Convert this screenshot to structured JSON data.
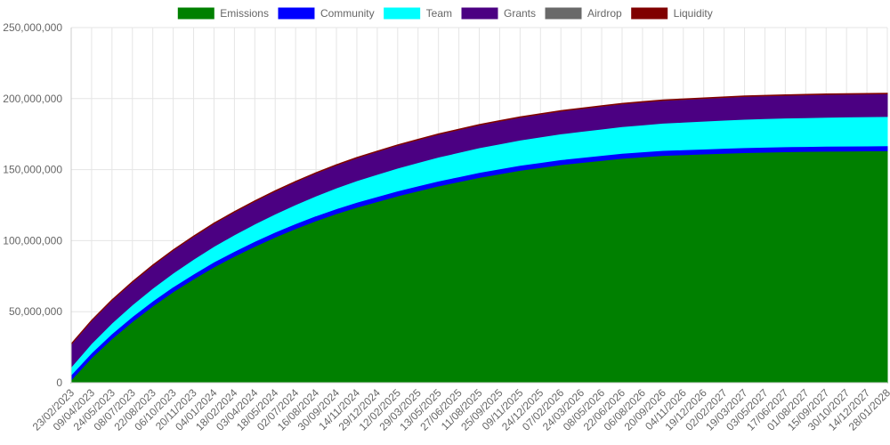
{
  "chart_data": {
    "type": "area",
    "stacked": true,
    "legend_position": "top",
    "grid": true,
    "ylim": [
      0,
      250000000
    ],
    "y_ticks": [
      0,
      50000000,
      100000000,
      150000000,
      200000000,
      250000000
    ],
    "y_tick_labels": [
      "0",
      "50,000,000",
      "100,000,000",
      "150,000,000",
      "200,000,000",
      "250,000,000"
    ],
    "x_labels": [
      "23/02/2023",
      "09/04/2023",
      "24/05/2023",
      "08/07/2023",
      "22/08/2023",
      "06/10/2023",
      "20/11/2023",
      "04/01/2024",
      "18/02/2024",
      "03/04/2024",
      "18/05/2024",
      "02/07/2024",
      "16/08/2024",
      "30/09/2024",
      "14/11/2024",
      "29/12/2024",
      "12/02/2025",
      "29/03/2025",
      "13/05/2025",
      "27/06/2025",
      "11/08/2025",
      "25/09/2025",
      "09/11/2025",
      "24/12/2025",
      "07/02/2026",
      "24/03/2026",
      "08/05/2026",
      "22/06/2026",
      "06/08/2026",
      "20/09/2026",
      "04/11/2026",
      "19/12/2026",
      "02/02/2027",
      "19/03/2027",
      "03/05/2027",
      "17/06/2027",
      "01/08/2027",
      "15/09/2027",
      "30/10/2027",
      "14/12/2027",
      "28/01/2028"
    ],
    "series": [
      {
        "name": "Emissions",
        "color": "#008000",
        "values": [
          2000000,
          17500000,
          31000000,
          43000000,
          54000000,
          64000000,
          73000000,
          81500000,
          89000000,
          96000000,
          102500000,
          108500000,
          114000000,
          119000000,
          123500000,
          127500000,
          131500000,
          135000000,
          138500000,
          141500000,
          144500000,
          147000000,
          149500000,
          151500000,
          153500000,
          155000000,
          156500000,
          158000000,
          159000000,
          160000000,
          160500000,
          161000000,
          161500000,
          162000000,
          162300000,
          162600000,
          162800000,
          163000000,
          163100000,
          163200000,
          163300000
        ]
      },
      {
        "name": "Community",
        "color": "#0000ff",
        "values": [
          3500000,
          3500000,
          3500000,
          3500000,
          3500000,
          3500000,
          3500000,
          3500000,
          3500000,
          3500000,
          3500000,
          3500000,
          3500000,
          3500000,
          3500000,
          3500000,
          3500000,
          3500000,
          3500000,
          3500000,
          3500000,
          3500000,
          3500000,
          3500000,
          3500000,
          3500000,
          3500000,
          3500000,
          3500000,
          3500000,
          3500000,
          3500000,
          3500000,
          3500000,
          3500000,
          3500000,
          3500000,
          3500000,
          3500000,
          3500000,
          3500000
        ]
      },
      {
        "name": "Team",
        "color": "#00ffff",
        "values": [
          5500000,
          6600000,
          7500000,
          8300000,
          9000000,
          9700000,
          10400000,
          11000000,
          11600000,
          12200000,
          12800000,
          13400000,
          14000000,
          14600000,
          15200000,
          15700000,
          16100000,
          16500000,
          16800000,
          17100000,
          17400000,
          17600000,
          17800000,
          18000000,
          18200000,
          18400000,
          18600000,
          18800000,
          19000000,
          19200000,
          19400000,
          19600000,
          19800000,
          20000000,
          20100000,
          20200000,
          20300000,
          20400000,
          20500000,
          20550000,
          20600000
        ]
      },
      {
        "name": "Grants",
        "color": "#4b0082",
        "values": [
          16000000,
          16000000,
          16000000,
          16000000,
          16000000,
          16000000,
          16000000,
          16000000,
          16000000,
          16000000,
          16000000,
          16000000,
          16000000,
          16000000,
          16000000,
          16000000,
          16000000,
          16000000,
          16000000,
          16000000,
          16000000,
          16000000,
          16000000,
          16000000,
          16000000,
          16000000,
          16000000,
          16000000,
          16000000,
          16000000,
          16000000,
          16000000,
          16000000,
          16000000,
          16000000,
          16000000,
          16000000,
          16000000,
          16000000,
          16000000,
          16000000
        ]
      },
      {
        "name": "Airdrop",
        "color": "#696969",
        "values": [
          0,
          0,
          0,
          0,
          0,
          0,
          0,
          0,
          0,
          0,
          0,
          0,
          0,
          0,
          0,
          0,
          0,
          0,
          0,
          0,
          0,
          0,
          0,
          0,
          0,
          0,
          0,
          0,
          0,
          0,
          0,
          0,
          0,
          0,
          0,
          0,
          0,
          0,
          0,
          0,
          0
        ]
      },
      {
        "name": "Liquidity",
        "color": "#800000",
        "values": [
          400000,
          400000,
          400000,
          400000,
          400000,
          400000,
          400000,
          400000,
          400000,
          400000,
          400000,
          400000,
          400000,
          400000,
          400000,
          400000,
          400000,
          400000,
          400000,
          400000,
          400000,
          400000,
          400000,
          400000,
          400000,
          400000,
          400000,
          400000,
          400000,
          400000,
          400000,
          400000,
          400000,
          400000,
          400000,
          400000,
          400000,
          400000,
          400000,
          400000,
          400000
        ]
      }
    ]
  }
}
